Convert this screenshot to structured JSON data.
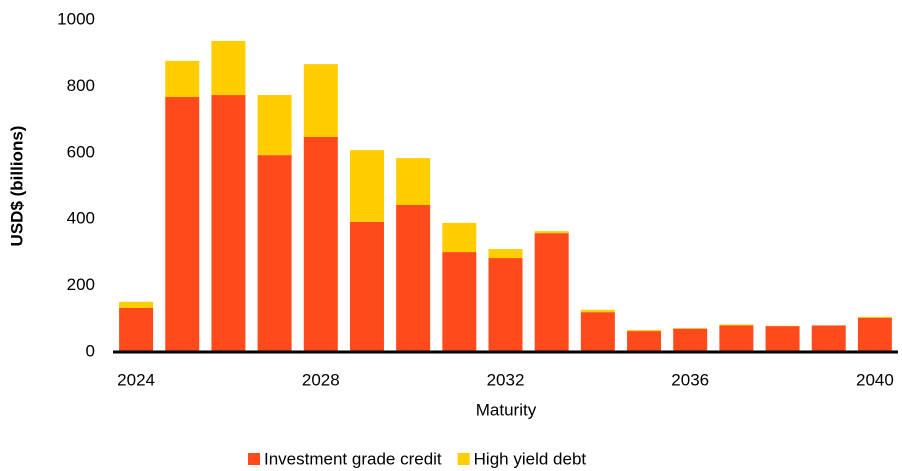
{
  "chart_data": {
    "type": "stacked-bar",
    "x_label": "Maturity",
    "y_label": "USD$ (billions)",
    "categories": [
      "2024",
      null,
      null,
      null,
      "2028",
      null,
      null,
      null,
      "2032",
      null,
      null,
      null,
      "2036",
      null,
      null,
      null,
      "2040"
    ],
    "series": [
      {
        "name": "Investment grade credit",
        "color": "#ff4b1c",
        "values": [
          133,
          768,
          774,
          593,
          648,
          392,
          443,
          301,
          283,
          358,
          120,
          63,
          70,
          80,
          78,
          80,
          103
        ]
      },
      {
        "name": "High yield debt",
        "color": "#ffcd00",
        "values": [
          18,
          109,
          163,
          181,
          219,
          216,
          141,
          88,
          27,
          6,
          7,
          3,
          2,
          3,
          1,
          0,
          3
        ]
      }
    ],
    "ylim": [
      0,
      1000
    ],
    "yticks": [
      0,
      200,
      400,
      600,
      800,
      1000
    ]
  }
}
